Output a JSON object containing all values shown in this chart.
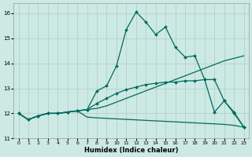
{
  "xlabel": "Humidex (Indice chaleur)",
  "xlim": [
    -0.5,
    23.5
  ],
  "ylim": [
    11.0,
    16.4
  ],
  "yticks": [
    11,
    12,
    13,
    14,
    15,
    16
  ],
  "xticks": [
    0,
    1,
    2,
    3,
    4,
    5,
    6,
    7,
    8,
    9,
    10,
    11,
    12,
    13,
    14,
    15,
    16,
    17,
    18,
    19,
    20,
    21,
    22,
    23
  ],
  "background_color": "#cce9e4",
  "grid_color": "#b0ccc8",
  "line_color": "#006b5e",
  "series": [
    {
      "x": [
        0,
        1,
        2,
        3,
        4,
        5,
        6,
        7,
        8,
        9,
        10,
        11,
        12,
        13,
        14,
        15,
        16,
        17,
        18,
        19,
        20,
        21,
        22,
        23
      ],
      "y": [
        12.0,
        11.75,
        11.9,
        12.0,
        12.0,
        12.05,
        12.1,
        12.15,
        12.9,
        13.1,
        13.9,
        15.35,
        16.05,
        15.65,
        15.15,
        15.45,
        14.65,
        14.25,
        14.3,
        13.35,
        12.05,
        12.5,
        12.0,
        11.45
      ],
      "marker": "D",
      "markersize": 2.0,
      "linewidth": 0.9
    },
    {
      "x": [
        0,
        1,
        2,
        3,
        4,
        5,
        6,
        7,
        8,
        9,
        10,
        11,
        12,
        13,
        14,
        15,
        16,
        17,
        18,
        19,
        20,
        21,
        22,
        23
      ],
      "y": [
        12.0,
        11.75,
        11.9,
        12.0,
        12.0,
        12.05,
        12.1,
        12.15,
        12.2,
        12.3,
        12.45,
        12.6,
        12.75,
        12.9,
        13.05,
        13.2,
        13.35,
        13.5,
        13.65,
        13.8,
        13.95,
        14.1,
        14.2,
        14.3
      ],
      "marker": null,
      "markersize": 0,
      "linewidth": 0.9
    },
    {
      "x": [
        0,
        1,
        2,
        3,
        4,
        5,
        6,
        7,
        8,
        9,
        10,
        11,
        12,
        13,
        14,
        15,
        16,
        17,
        18,
        19,
        20,
        21,
        22,
        23
      ],
      "y": [
        12.0,
        11.75,
        11.9,
        12.0,
        12.0,
        12.05,
        12.1,
        12.15,
        12.4,
        12.6,
        12.8,
        12.95,
        13.05,
        13.15,
        13.2,
        13.25,
        13.25,
        13.3,
        13.3,
        13.35,
        13.35,
        12.5,
        12.05,
        11.45
      ],
      "marker": "D",
      "markersize": 2.0,
      "linewidth": 0.9
    },
    {
      "x": [
        0,
        1,
        2,
        3,
        4,
        5,
        6,
        7,
        8,
        9,
        10,
        11,
        12,
        13,
        14,
        15,
        16,
        17,
        18,
        19,
        20,
        21,
        22,
        23
      ],
      "y": [
        12.0,
        11.75,
        11.9,
        12.0,
        12.0,
        12.05,
        12.1,
        11.85,
        11.82,
        11.8,
        11.78,
        11.76,
        11.74,
        11.72,
        11.7,
        11.68,
        11.66,
        11.64,
        11.62,
        11.6,
        11.58,
        11.56,
        11.52,
        11.45
      ],
      "marker": null,
      "markersize": 0,
      "linewidth": 0.9
    }
  ]
}
